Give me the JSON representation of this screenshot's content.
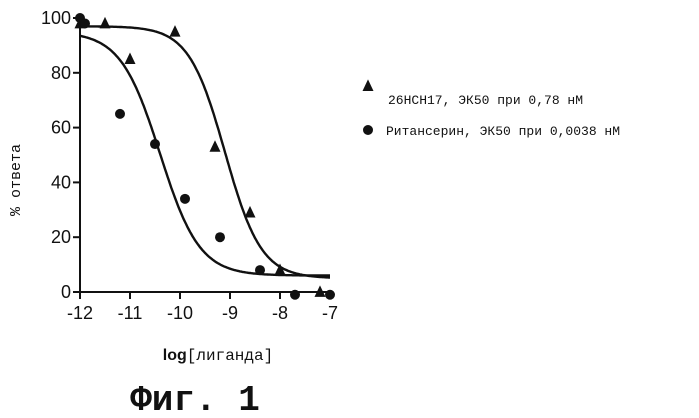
{
  "chart_data": {
    "type": "scatter",
    "xlabel_prefix": "log",
    "xlabel_suffix": "[лиганда]",
    "ylabel": "% ответа",
    "xlim": [
      -12,
      -7
    ],
    "ylim": [
      0,
      100
    ],
    "xticks": [
      "-12",
      "-11",
      "-10",
      "-9",
      "-8",
      "-7"
    ],
    "yticks": [
      "0",
      "20",
      "40",
      "60",
      "80",
      "100"
    ],
    "legend_position": "right",
    "series": [
      {
        "name": "26HCH17, ЭК50 при 0,78 нМ",
        "marker": "triangle",
        "x": [
          -12,
          -11.5,
          -11,
          -10.1,
          -9.3,
          -8.6,
          -8,
          -7.2
        ],
        "y": [
          98,
          98,
          85,
          95,
          53,
          29,
          8,
          0
        ],
        "fit": {
          "top": 97,
          "bottom": 5,
          "logEC50": -9.1,
          "hill": 1.2
        }
      },
      {
        "name": "Ритансерин, ЭК50 при 0,0038 нМ",
        "marker": "circle",
        "x": [
          -12,
          -11.9,
          -11.2,
          -10.5,
          -9.9,
          -9.2,
          -8.4,
          -7.7,
          -7
        ],
        "y": [
          100,
          98,
          65,
          54,
          34,
          20,
          8,
          -1,
          -1
        ],
        "fit": {
          "top": 95,
          "bottom": 6,
          "logEC50": -10.4,
          "hill": 1.1
        }
      }
    ]
  },
  "caption": "Фиг. 1"
}
